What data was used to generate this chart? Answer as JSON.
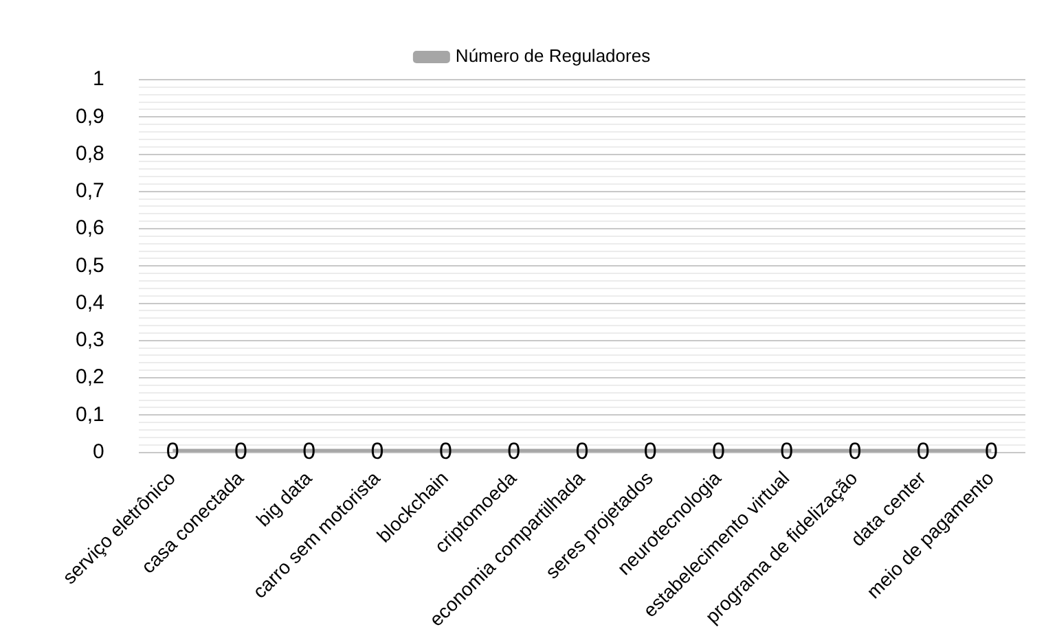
{
  "chart_data": {
    "type": "line",
    "categories": [
      "serviço eletrônico",
      "casa conectada",
      "big data",
      "carro sem motorista",
      "blockchain",
      "criptomoeda",
      "economia compartilhada",
      "seres projetados",
      "neurotecnologia",
      "estabelecimento virtual",
      "programa de fidelização",
      "data center",
      "meio de pagamento"
    ],
    "series": [
      {
        "name": "Número de Reguladores",
        "color": "#a6a6a6",
        "values": [
          0,
          0,
          0,
          0,
          0,
          0,
          0,
          0,
          0,
          0,
          0,
          0,
          0
        ]
      }
    ],
    "ylim": [
      0,
      1
    ],
    "yticks": [
      0,
      {
        "value": 0.02,
        "label": null
      },
      {
        "value": 0.04,
        "label": null
      },
      {
        "value": 0.06,
        "label": null
      },
      {
        "value": 0.08,
        "label": null
      },
      {
        "value": 0.1,
        "label": "0,1"
      },
      {
        "value": 0.12,
        "label": null
      },
      {
        "value": 0.14,
        "label": null
      },
      {
        "value": 0.16,
        "label": null
      },
      {
        "value": 0.18,
        "label": null
      },
      {
        "value": 0.2,
        "label": "0,2"
      },
      {
        "value": 0.22,
        "label": null
      },
      {
        "value": 0.24,
        "label": null
      },
      {
        "value": 0.26,
        "label": null
      },
      {
        "value": 0.28,
        "label": null
      },
      {
        "value": 0.3,
        "label": "0,3"
      },
      {
        "value": 0.32,
        "label": null
      },
      {
        "value": 0.34,
        "label": null
      },
      {
        "value": 0.36,
        "label": null
      },
      {
        "value": 0.38,
        "label": null
      },
      {
        "value": 0.4,
        "label": "0,4"
      },
      {
        "value": 0.42,
        "label": null
      },
      {
        "value": 0.44,
        "label": null
      },
      {
        "value": 0.46,
        "label": null
      },
      {
        "value": 0.48,
        "label": null
      },
      {
        "value": 0.5,
        "label": "0,5"
      },
      {
        "value": 0.52,
        "label": null
      },
      {
        "value": 0.54,
        "label": null
      },
      {
        "value": 0.56,
        "label": null
      },
      {
        "value": 0.58,
        "label": null
      },
      {
        "value": 0.6,
        "label": "0,6"
      },
      {
        "value": 0.62,
        "label": null
      },
      {
        "value": 0.64,
        "label": null
      },
      {
        "value": 0.66,
        "label": null
      },
      {
        "value": 0.68,
        "label": null
      },
      {
        "value": 0.7,
        "label": "0,7"
      },
      {
        "value": 0.72,
        "label": null
      },
      {
        "value": 0.74,
        "label": null
      },
      {
        "value": 0.76,
        "label": null
      },
      {
        "value": 0.78,
        "label": null
      },
      {
        "value": 0.8,
        "label": "0,8"
      },
      {
        "value": 0.82,
        "label": null
      },
      {
        "value": 0.84,
        "label": null
      },
      {
        "value": 0.86,
        "label": null
      },
      {
        "value": 0.88,
        "label": null
      },
      {
        "value": 0.9,
        "label": "0,9"
      },
      {
        "value": 0.92,
        "label": null
      },
      {
        "value": 0.94,
        "label": null
      },
      {
        "value": 0.96,
        "label": null
      },
      {
        "value": 0.98,
        "label": null
      },
      1
    ],
    "grid": "y",
    "legend": "top",
    "marker": "none",
    "data_labels": true
  }
}
